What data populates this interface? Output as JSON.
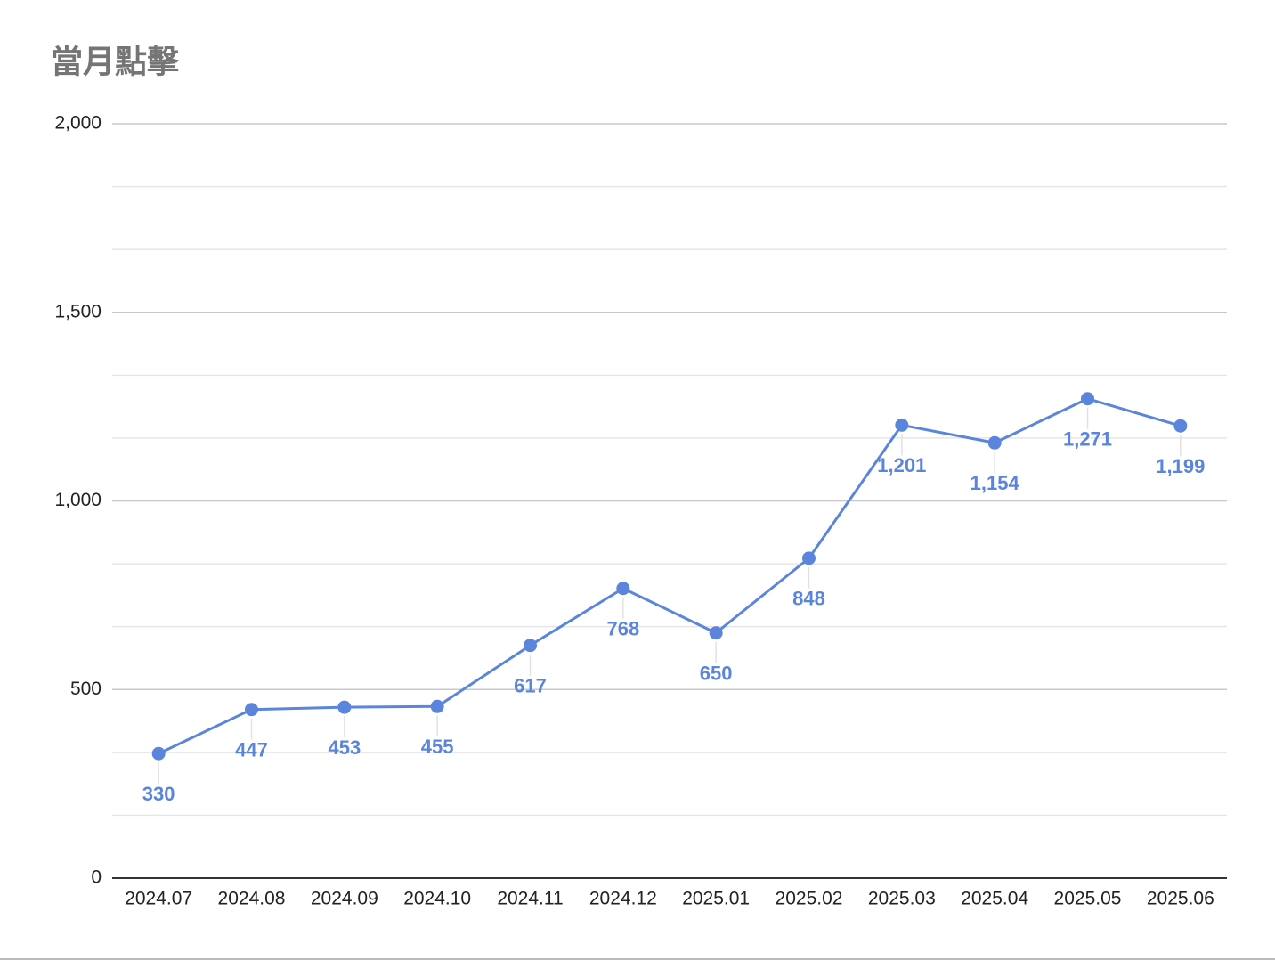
{
  "chart_data": {
    "type": "line",
    "title": "當月點擊",
    "categories": [
      "2024.07",
      "2024.08",
      "2024.09",
      "2024.10",
      "2024.11",
      "2024.12",
      "2025.01",
      "2025.02",
      "2025.03",
      "2025.04",
      "2025.05",
      "2025.06"
    ],
    "series": [
      {
        "name": "當月點擊",
        "color": "#5b85dd",
        "values": [
          330,
          447,
          453,
          455,
          617,
          768,
          650,
          848,
          1201,
          1154,
          1271,
          1199
        ],
        "value_labels": [
          "330",
          "447",
          "453",
          "455",
          "617",
          "768",
          "650",
          "848",
          "1,201",
          "1,154",
          "1,271",
          "1,199"
        ]
      }
    ],
    "ylim": [
      0,
      2000
    ],
    "yticks": [
      0,
      500,
      {
        "value": 1000,
        "label": "1,000"
      },
      {
        "value": 1500,
        "label": "1,500"
      },
      {
        "value": 2000,
        "label": "2,000"
      }
    ],
    "grid": true
  }
}
